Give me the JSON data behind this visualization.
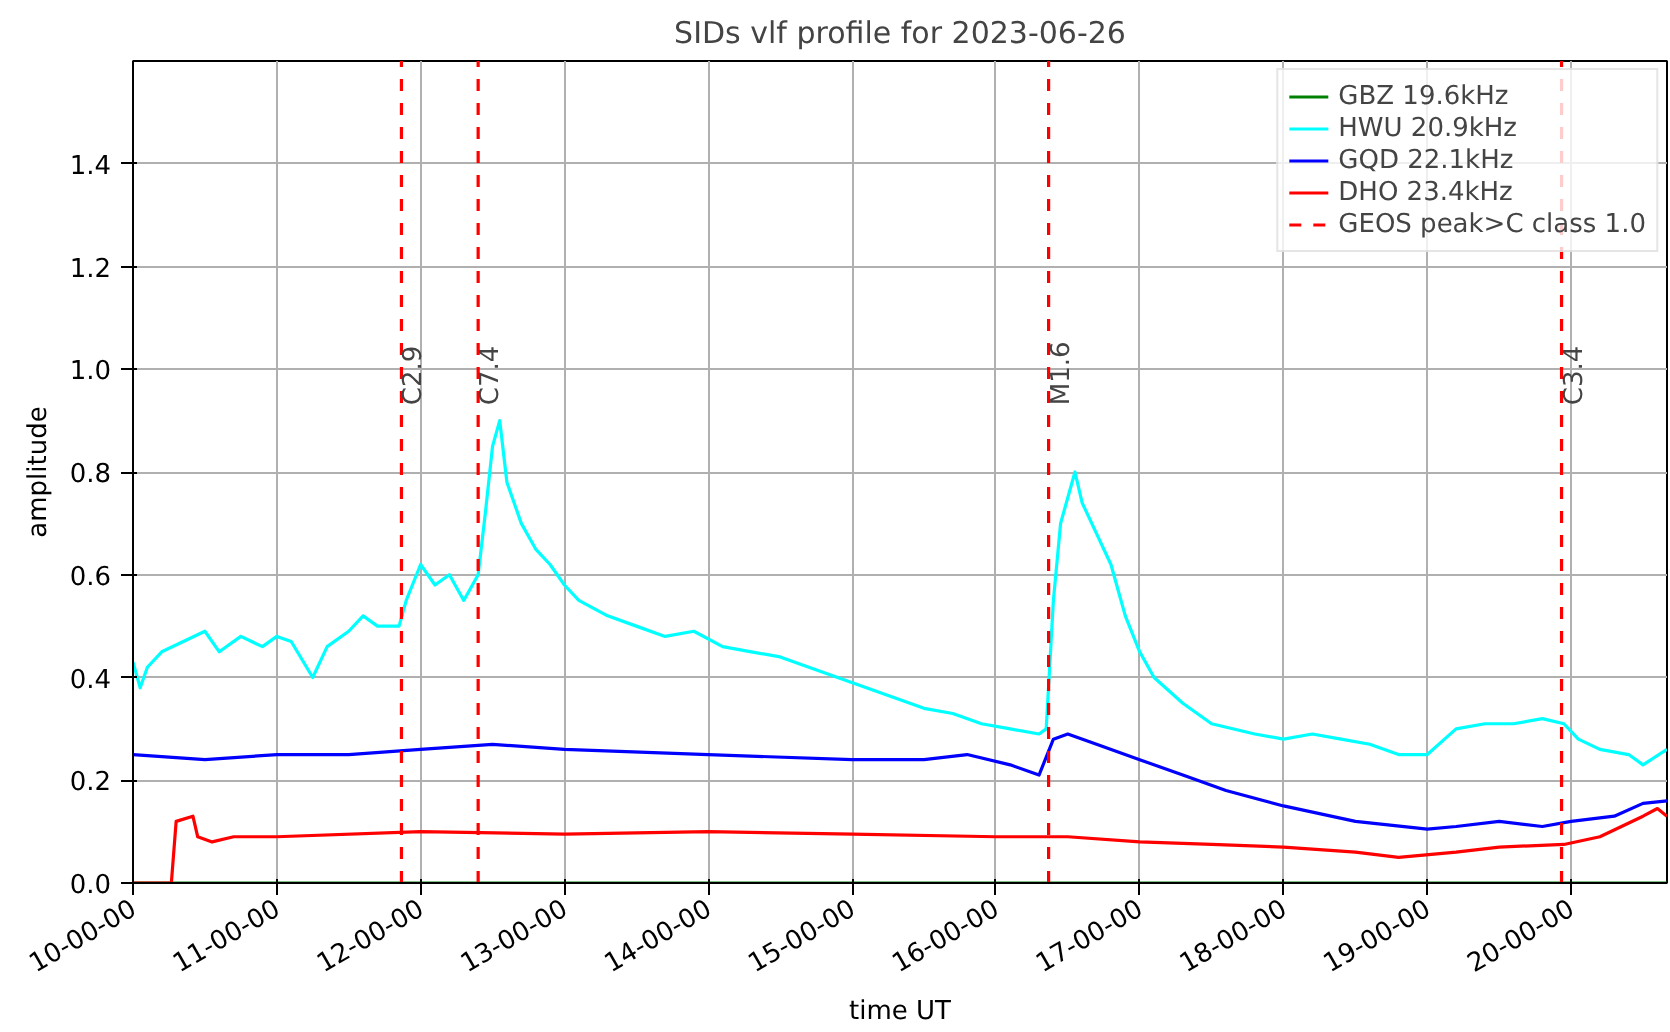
{
  "chart_data": {
    "type": "line",
    "title": "SIDs vlf profile for 2023-06-26",
    "xlabel": "time UT",
    "ylabel": "amplitude",
    "xlim": [
      "2023-06-26T10:00",
      "2023-06-26T20:40"
    ],
    "ylim": [
      0,
      1.6
    ],
    "xticks": [
      {
        "value": "2023-06-26T10:00",
        "label": "10-00-00"
      },
      {
        "value": "2023-06-26T11:00",
        "label": "11-00-00"
      },
      {
        "value": "2023-06-26T12:00",
        "label": "12-00-00"
      },
      {
        "value": "2023-06-26T13:00",
        "label": "13-00-00"
      },
      {
        "value": "2023-06-26T14:00",
        "label": "14-00-00"
      },
      {
        "value": "2023-06-26T15:00",
        "label": "15-00-00"
      },
      {
        "value": "2023-06-26T16:00",
        "label": "16-00-00"
      },
      {
        "value": "2023-06-26T17:00",
        "label": "17-00-00"
      },
      {
        "value": "2023-06-26T18:00",
        "label": "18-00-00"
      },
      {
        "value": "2023-06-26T19:00",
        "label": "19-00-00"
      },
      {
        "value": "2023-06-26T20:00",
        "label": "20-00-00"
      }
    ],
    "yticks": [
      {
        "value": 0,
        "label": "0.0"
      },
      {
        "value": 0.2,
        "label": "0.2"
      },
      {
        "value": 0.4,
        "label": "0.4"
      },
      {
        "value": 0.6,
        "label": "0.6"
      },
      {
        "value": 0.8,
        "label": "0.8"
      },
      {
        "value": 1.0,
        "label": "1.0"
      },
      {
        "value": 1.2,
        "label": "1.2"
      },
      {
        "value": 1.4,
        "label": "1.4"
      }
    ],
    "grid": true,
    "legend": "top right",
    "line_style": "solid",
    "marker": "none",
    "series": [
      {
        "name": "GBZ 19.6kHz",
        "color": "#008000",
        "x": [
          "2023-06-26T10:00",
          "2023-06-26T20:40"
        ],
        "values": [
          0,
          0
        ]
      },
      {
        "name": "HWU 20.9kHz",
        "color": "#00ffff",
        "x": [
          "2023-06-26T10:00",
          "2023-06-26T10:03",
          "2023-06-26T10:06",
          "2023-06-26T10:12",
          "2023-06-26T10:21",
          "2023-06-26T10:30",
          "2023-06-26T10:36",
          "2023-06-26T10:45",
          "2023-06-26T10:54",
          "2023-06-26T11:00",
          "2023-06-26T11:06",
          "2023-06-26T11:15",
          "2023-06-26T11:21",
          "2023-06-26T11:30",
          "2023-06-26T11:36",
          "2023-06-26T11:42",
          "2023-06-26T11:51",
          "2023-06-26T11:54",
          "2023-06-26T12:00",
          "2023-06-26T12:06",
          "2023-06-26T12:12",
          "2023-06-26T12:18",
          "2023-06-26T12:24",
          "2023-06-26T12:27",
          "2023-06-26T12:30",
          "2023-06-26T12:33",
          "2023-06-26T12:36",
          "2023-06-26T12:42",
          "2023-06-26T12:48",
          "2023-06-26T12:54",
          "2023-06-26T13:00",
          "2023-06-26T13:06",
          "2023-06-26T13:18",
          "2023-06-26T13:30",
          "2023-06-26T13:42",
          "2023-06-26T13:54",
          "2023-06-26T14:06",
          "2023-06-26T14:18",
          "2023-06-26T14:30",
          "2023-06-26T14:42",
          "2023-06-26T14:54",
          "2023-06-26T15:06",
          "2023-06-26T15:18",
          "2023-06-26T15:30",
          "2023-06-26T15:42",
          "2023-06-26T15:54",
          "2023-06-26T16:06",
          "2023-06-26T16:18",
          "2023-06-26T16:21",
          "2023-06-26T16:24",
          "2023-06-26T16:27",
          "2023-06-26T16:33",
          "2023-06-26T16:36",
          "2023-06-26T16:42",
          "2023-06-26T16:48",
          "2023-06-26T16:54",
          "2023-06-26T17:00",
          "2023-06-26T17:06",
          "2023-06-26T17:18",
          "2023-06-26T17:30",
          "2023-06-26T17:48",
          "2023-06-26T18:00",
          "2023-06-26T18:12",
          "2023-06-26T18:24",
          "2023-06-26T18:36",
          "2023-06-26T18:48",
          "2023-06-26T19:00",
          "2023-06-26T19:12",
          "2023-06-26T19:24",
          "2023-06-26T19:36",
          "2023-06-26T19:48",
          "2023-06-26T19:57",
          "2023-06-26T20:03",
          "2023-06-26T20:12",
          "2023-06-26T20:24",
          "2023-06-26T20:30",
          "2023-06-26T20:40"
        ],
        "values": [
          0.43,
          0.38,
          0.42,
          0.45,
          0.47,
          0.49,
          0.45,
          0.48,
          0.46,
          0.48,
          0.47,
          0.4,
          0.46,
          0.49,
          0.52,
          0.5,
          0.5,
          0.55,
          0.62,
          0.58,
          0.6,
          0.55,
          0.6,
          0.72,
          0.85,
          0.9,
          0.78,
          0.7,
          0.65,
          0.62,
          0.58,
          0.55,
          0.52,
          0.5,
          0.48,
          0.49,
          0.46,
          0.45,
          0.44,
          0.42,
          0.4,
          0.38,
          0.36,
          0.34,
          0.33,
          0.31,
          0.3,
          0.29,
          0.3,
          0.55,
          0.7,
          0.8,
          0.74,
          0.68,
          0.62,
          0.52,
          0.45,
          0.4,
          0.35,
          0.31,
          0.29,
          0.28,
          0.29,
          0.28,
          0.27,
          0.25,
          0.25,
          0.3,
          0.31,
          0.31,
          0.32,
          0.31,
          0.28,
          0.26,
          0.25,
          0.23,
          0.26
        ]
      },
      {
        "name": "GQD 22.1kHz",
        "color": "#0000ff",
        "x": [
          "2023-06-26T10:00",
          "2023-06-26T10:30",
          "2023-06-26T11:00",
          "2023-06-26T11:30",
          "2023-06-26T12:00",
          "2023-06-26T12:30",
          "2023-06-26T13:00",
          "2023-06-26T14:00",
          "2023-06-26T15:00",
          "2023-06-26T15:30",
          "2023-06-26T15:48",
          "2023-06-26T16:06",
          "2023-06-26T16:18",
          "2023-06-26T16:24",
          "2023-06-26T16:30",
          "2023-06-26T16:42",
          "2023-06-26T17:00",
          "2023-06-26T17:18",
          "2023-06-26T17:36",
          "2023-06-26T18:00",
          "2023-06-26T18:30",
          "2023-06-26T19:00",
          "2023-06-26T19:12",
          "2023-06-26T19:30",
          "2023-06-26T19:48",
          "2023-06-26T20:00",
          "2023-06-26T20:18",
          "2023-06-26T20:30",
          "2023-06-26T20:40"
        ],
        "values": [
          0.25,
          0.24,
          0.25,
          0.25,
          0.26,
          0.27,
          0.26,
          0.25,
          0.24,
          0.24,
          0.25,
          0.23,
          0.21,
          0.28,
          0.29,
          0.27,
          0.24,
          0.21,
          0.18,
          0.15,
          0.12,
          0.105,
          0.11,
          0.12,
          0.11,
          0.12,
          0.13,
          0.155,
          0.16
        ]
      },
      {
        "name": "DHO 23.4kHz",
        "color": "#ff0000",
        "x": [
          "2023-06-26T10:00",
          "2023-06-26T10:16",
          "2023-06-26T10:18",
          "2023-06-26T10:25",
          "2023-06-26T10:27",
          "2023-06-26T10:33",
          "2023-06-26T10:42",
          "2023-06-26T11:00",
          "2023-06-26T12:00",
          "2023-06-26T13:00",
          "2023-06-26T14:00",
          "2023-06-26T15:00",
          "2023-06-26T16:00",
          "2023-06-26T16:30",
          "2023-06-26T17:00",
          "2023-06-26T17:30",
          "2023-06-26T18:00",
          "2023-06-26T18:30",
          "2023-06-26T18:48",
          "2023-06-26T19:12",
          "2023-06-26T19:30",
          "2023-06-26T19:57",
          "2023-06-26T20:12",
          "2023-06-26T20:30",
          "2023-06-26T20:36",
          "2023-06-26T20:40"
        ],
        "values": [
          0,
          0,
          0.12,
          0.13,
          0.09,
          0.08,
          0.09,
          0.09,
          0.1,
          0.095,
          0.1,
          0.095,
          0.09,
          0.09,
          0.08,
          0.075,
          0.07,
          0.06,
          0.05,
          0.06,
          0.07,
          0.075,
          0.09,
          0.13,
          0.145,
          0.13
        ]
      }
    ],
    "ref_lines": [
      {
        "axis": "x",
        "value": "2023-06-26T11:52",
        "label": "C2.9",
        "color": "#ff0000",
        "line_style": "dashed"
      },
      {
        "axis": "x",
        "value": "2023-06-26T12:24",
        "label": "C7.4",
        "color": "#ff0000",
        "line_style": "dashed"
      },
      {
        "axis": "x",
        "value": "2023-06-26T16:22",
        "label": "M1.6",
        "color": "#ff0000",
        "line_style": "dashed"
      },
      {
        "axis": "x",
        "value": "2023-06-26T19:56",
        "label": "C3.4",
        "color": "#ff0000",
        "line_style": "dashed"
      }
    ],
    "annotations": [
      "GEOS peak>C class 1.0"
    ]
  }
}
